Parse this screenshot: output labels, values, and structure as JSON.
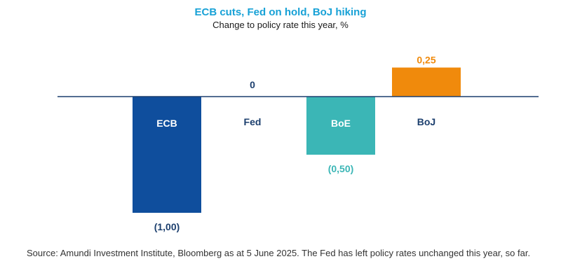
{
  "chart_data": {
    "type": "bar",
    "title": "ECB cuts, Fed on hold, BoJ hiking",
    "subtitle": "Change to policy rate this year, %",
    "categories": [
      "ECB",
      "Fed",
      "BoE",
      "BoJ"
    ],
    "values": [
      -1.0,
      0,
      -0.5,
      0.25
    ],
    "value_labels": [
      "(1,00)",
      "0",
      "(0,50)",
      "0,25"
    ],
    "colors": [
      "#0f4e9d",
      "#1c3f6e",
      "#3bb6b6",
      "#f08a0c"
    ],
    "category_label_colors": [
      "#ffffff",
      "#1c3f6e",
      "#ffffff",
      "#1c3f6e"
    ],
    "value_label_colors": [
      "#1c3f6e",
      "#1c3f6e",
      "#3bb6b6",
      "#f08a0c"
    ],
    "ylim": [
      -1.0,
      0.25
    ],
    "grid": false,
    "legend": "none"
  },
  "footer": {
    "source": "Source: Amundi Investment Institute, Bloomberg as at 5 June 2025. The Fed has left policy rates unchanged this year, so far."
  },
  "colors": {
    "title": "#17a1d6",
    "axis": "#1c3f6e"
  }
}
